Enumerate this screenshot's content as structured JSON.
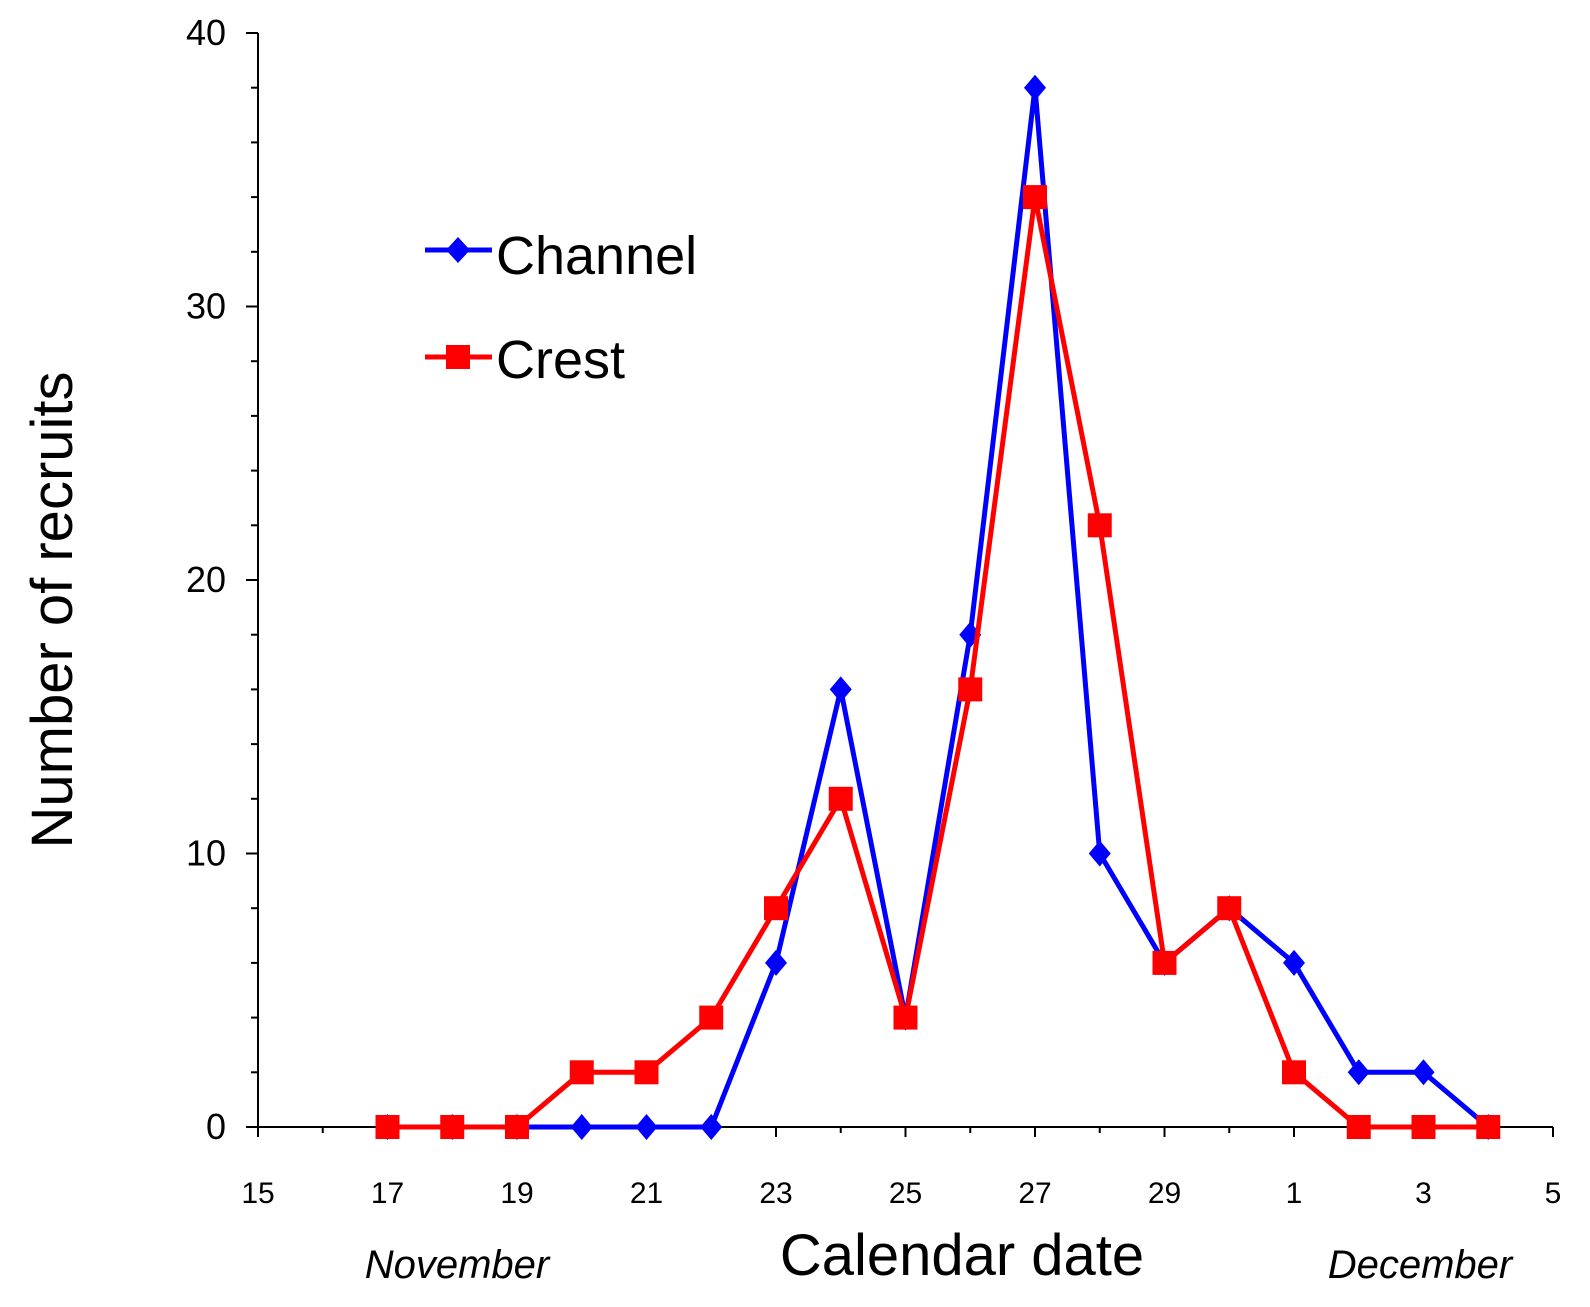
{
  "chart_data": {
    "type": "line",
    "xlabel": "Calendar date",
    "ylabel": "Number of recruits",
    "ylim": [
      0,
      40
    ],
    "yticks": [
      0,
      10,
      20,
      30,
      40
    ],
    "xticks": [
      "15",
      "17",
      "19",
      "21",
      "23",
      "25",
      "27",
      "29",
      "1",
      "3",
      "5"
    ],
    "month_labels": {
      "november": "November",
      "december": "December"
    },
    "x": [
      "17",
      "18",
      "19",
      "20",
      "21",
      "22",
      "23",
      "24",
      "25",
      "26",
      "27",
      "28",
      "29",
      "30",
      "1",
      "2",
      "3",
      "4"
    ],
    "series": [
      {
        "name": "Channel",
        "color": "#0000ff",
        "marker": "diamond",
        "values": [
          0,
          0,
          0,
          0,
          0,
          0,
          6,
          16,
          4,
          18,
          38,
          10,
          6,
          8,
          6,
          2,
          2,
          0
        ]
      },
      {
        "name": "Crest",
        "color": "#ff0000",
        "marker": "square",
        "values": [
          0,
          0,
          0,
          2,
          2,
          4,
          8,
          12,
          4,
          16,
          34,
          22,
          6,
          8,
          2,
          0,
          0,
          0
        ]
      }
    ],
    "grid": false,
    "legend": "top-left"
  }
}
